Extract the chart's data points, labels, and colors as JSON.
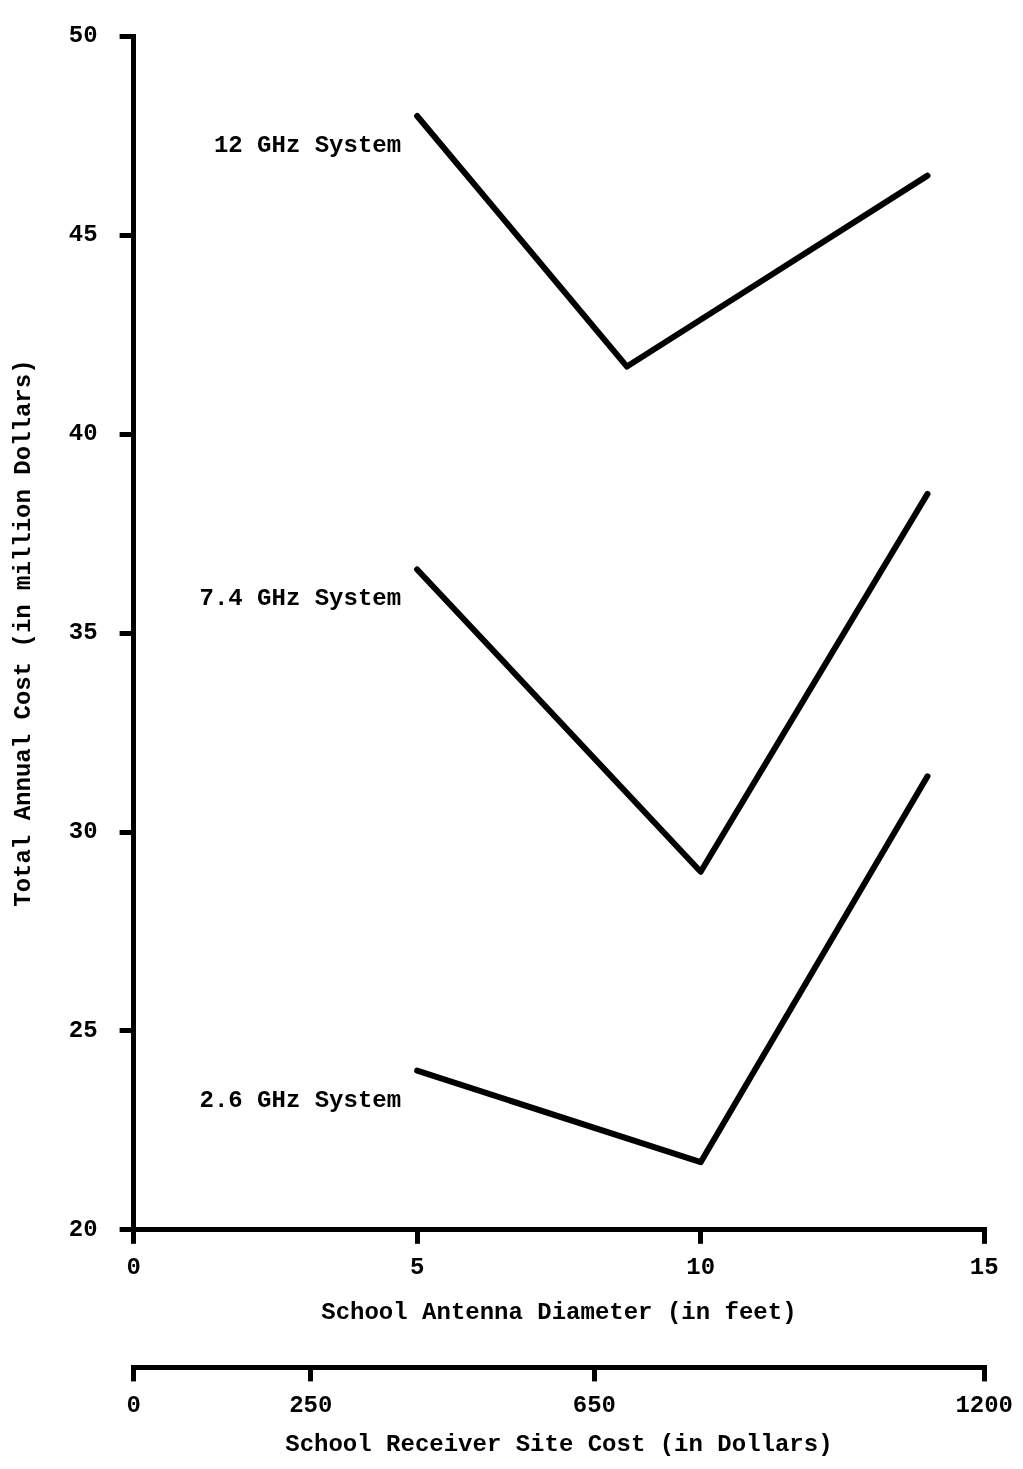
{
  "chart_data": {
    "type": "line",
    "xlabel": "School Antenna Diameter (in feet)",
    "ylabel": "Total Annual Cost (in million Dollars)",
    "x2label": "School Receiver Site Cost (in Dollars)",
    "xlim": [
      0,
      15
    ],
    "xticks": [
      0,
      5,
      10,
      15
    ],
    "ylim": [
      20,
      50
    ],
    "yticks": [
      20,
      25,
      30,
      35,
      40,
      45,
      50
    ],
    "x2lim": [
      0,
      1200
    ],
    "x2ticks": [
      0,
      250,
      650,
      1200
    ],
    "grid": false,
    "legend": false,
    "marker": "none",
    "line_style": "solid",
    "series": [
      {
        "name": "12 GHz System",
        "color": "#000000",
        "x": [
          5,
          8.7,
          14
        ],
        "values": [
          48.0,
          41.7,
          46.5
        ]
      },
      {
        "name": "7.4 GHz System",
        "color": "#000000",
        "x": [
          5,
          10,
          14
        ],
        "values": [
          36.6,
          29.0,
          38.5
        ]
      },
      {
        "name": "2.6 GHz System",
        "color": "#000000",
        "x": [
          5,
          10,
          14
        ],
        "values": [
          24.0,
          21.7,
          31.4
        ]
      }
    ]
  }
}
